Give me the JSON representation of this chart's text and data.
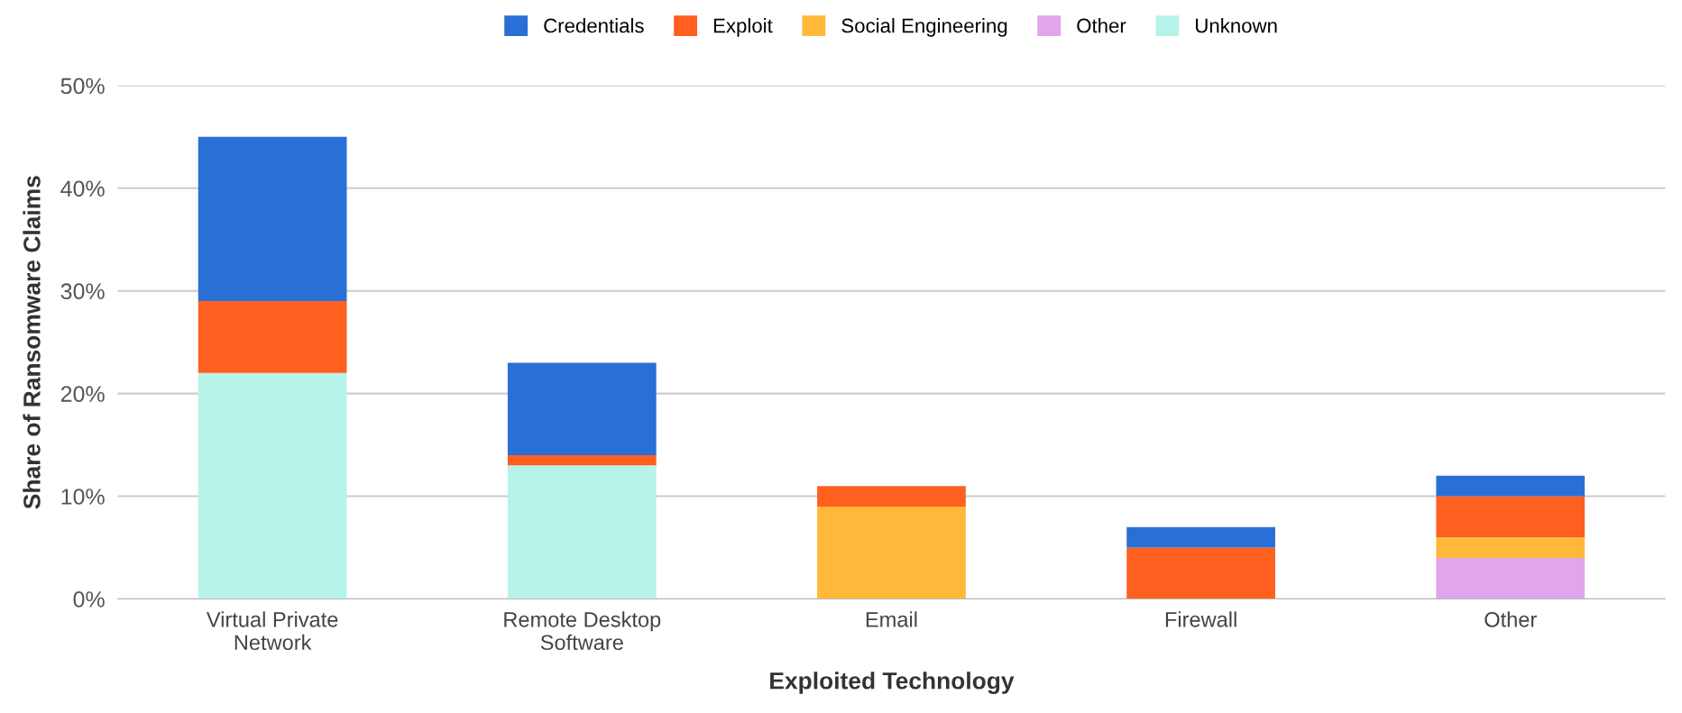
{
  "chart_data": {
    "type": "bar",
    "stacked": true,
    "xlabel": "Exploited Technology",
    "ylabel": "Share of Ransomware Claims",
    "categories": [
      "Virtual Private\nNetwork",
      "Remote Desktop\nSoftware",
      "Email",
      "Firewall",
      "Other"
    ],
    "series": [
      {
        "name": "Unknown",
        "color": "#b8f3ea",
        "values": [
          22,
          13,
          0,
          0,
          0
        ]
      },
      {
        "name": "Other",
        "color": "#e0a5ea",
        "values": [
          0,
          0,
          0,
          0,
          4
        ]
      },
      {
        "name": "Social Engineering",
        "color": "#ffb83a",
        "values": [
          0,
          0,
          9,
          0,
          2
        ]
      },
      {
        "name": "Exploit",
        "color": "#ff5f1f",
        "values": [
          7,
          1,
          2,
          5,
          4
        ]
      },
      {
        "name": "Credentials",
        "color": "#2a6fd6",
        "values": [
          16,
          9,
          0,
          2,
          2
        ]
      }
    ],
    "ylim": [
      0,
      50
    ],
    "yticks": [
      {
        "value": 0,
        "label": "0%"
      },
      {
        "value": 10,
        "label": "10%"
      },
      {
        "value": 20,
        "label": "20%"
      },
      {
        "value": 30,
        "label": "30%"
      },
      {
        "value": 40,
        "label": "40%"
      },
      {
        "value": 50,
        "label": "50%"
      }
    ],
    "grid": "y",
    "legend": "top"
  }
}
